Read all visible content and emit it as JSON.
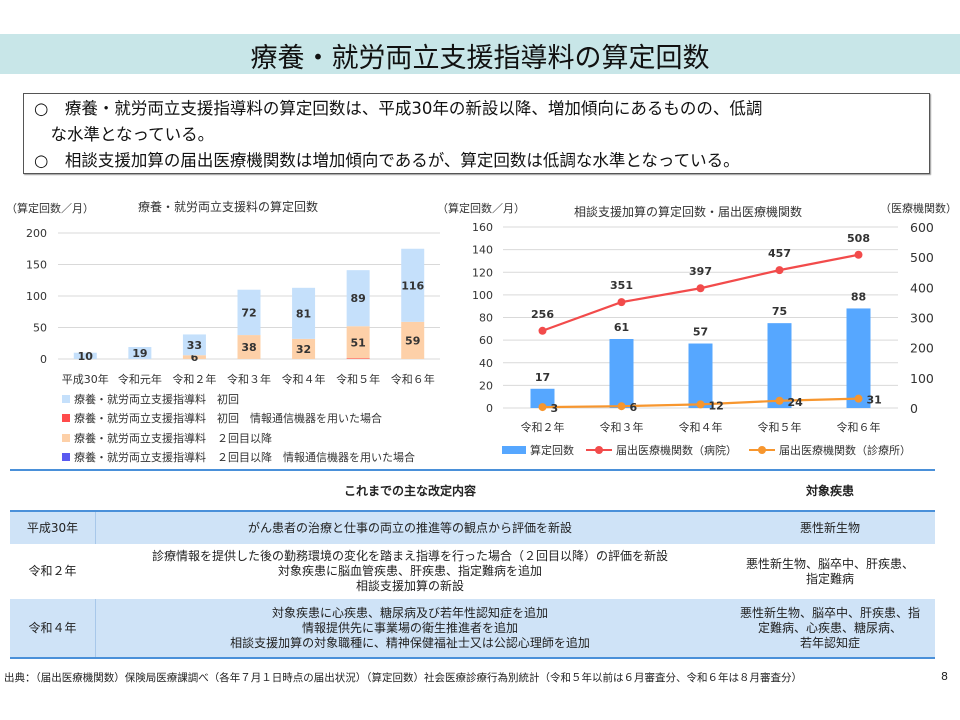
{
  "page": {
    "title": "療養・就労両立支援指導料の算定回数",
    "summary": [
      "○　療養・就労両立支援指導料の算定回数は、平成30年の新設以降、増加傾向にあるものの、低調",
      "　な水準となっている。",
      "○　相談支援加算の届出医療機関数は増加傾向であるが、算定回数は低調な水準となっている。"
    ],
    "source": "出典：（届出医療機関数）保険局医療課調べ（各年７月１日時点の届出状況）（算定回数）社会医療診療行為別統計（令和５年以前は６月審査分、令和６年は８月審査分）",
    "page_number": "8"
  },
  "chart_data": [
    {
      "type": "bar",
      "stacked": true,
      "title": "療養・就労両立支援料の算定回数",
      "ylabel": "（算定回数／月）",
      "xlabel": "",
      "ylim": [
        0,
        200
      ],
      "yticks": [
        0,
        50,
        100,
        150,
        200
      ],
      "grid": true,
      "legend_position": "bottom",
      "categories": [
        "平成30年",
        "令和元年",
        "令和２年",
        "令和３年",
        "令和４年",
        "令和５年",
        "令和６年"
      ],
      "series": [
        {
          "name": "療養・就労両立支援指導料　初回　情報通信機器を用いた場合",
          "color": "#ff4b4b",
          "values": [
            null,
            null,
            null,
            null,
            0,
            1,
            0
          ]
        },
        {
          "name": "療養・就労両立支援指導料　２回目以降",
          "color": "#fdd0a8",
          "values": [
            null,
            null,
            6,
            38,
            32,
            51,
            59
          ]
        },
        {
          "name": "療養・就労両立支援指導料　２回目以降　情報通信機器を用いた場合",
          "color": "#5a5af0",
          "values": [
            null,
            null,
            null,
            null,
            0,
            0,
            0
          ]
        },
        {
          "name": "療養・就労両立支援指導料　初回",
          "color": "#c5e0fb",
          "values": [
            10,
            19,
            33,
            72,
            81,
            89,
            116
          ]
        }
      ],
      "legend_order": [
        {
          "name": "療養・就労両立支援指導料　初回",
          "color": "#c5e0fb"
        },
        {
          "name": "療養・就労両立支援指導料　初回　情報通信機器を用いた場合",
          "color": "#ff4b4b"
        },
        {
          "name": "療養・就労両立支援指導料　２回目以降",
          "color": "#fdd0a8"
        },
        {
          "name": "療養・就労両立支援指導料　２回目以降　情報通信機器を用いた場合",
          "color": "#5a5af0"
        }
      ]
    },
    {
      "type": "bar+line",
      "title": "相談支援加算の算定回数・届出医療機関数",
      "ylabel": "（算定回数／月）",
      "y2label": "（医療機関数）",
      "ylim": [
        0,
        160
      ],
      "yticks": [
        0,
        20,
        40,
        60,
        80,
        100,
        120,
        140,
        160
      ],
      "y2lim": [
        0,
        600
      ],
      "y2ticks": [
        0,
        100,
        200,
        300,
        400,
        500,
        600
      ],
      "grid": true,
      "legend_position": "bottom",
      "categories": [
        "令和２年",
        "令和３年",
        "令和４年",
        "令和５年",
        "令和６年"
      ],
      "series": [
        {
          "name": "算定回数",
          "type": "bar",
          "axis": "left",
          "color": "#56a7ff",
          "values": [
            17,
            61,
            57,
            75,
            88
          ]
        },
        {
          "name": "届出医療機関数（病院）",
          "type": "line",
          "axis": "right",
          "color": "#f24b4b",
          "values": [
            256,
            351,
            397,
            457,
            508
          ]
        },
        {
          "name": "届出医療機関数（診療所）",
          "type": "line",
          "axis": "right",
          "color": "#f7962e",
          "values": [
            3,
            6,
            12,
            24,
            31
          ]
        }
      ]
    }
  ],
  "table": {
    "headers": [
      "",
      "これまでの主な改定内容",
      "対象疾患"
    ],
    "rows": [
      {
        "year": "平成30年",
        "content": [
          "がん患者の治療と仕事の両立の推進等の観点から評価を新設"
        ],
        "diseases": [
          "悪性新生物"
        ]
      },
      {
        "year": "令和２年",
        "content": [
          "診療情報を提供した後の勤務環境の変化を踏まえ指導を行った場合（２回目以降）の評価を新設",
          "対象疾患に脳血管疾患、肝疾患、指定難病を追加",
          "相談支援加算の新設"
        ],
        "diseases": [
          "悪性新生物、脳卒中、肝疾患、",
          "指定難病"
        ]
      },
      {
        "year": "令和４年",
        "content": [
          "対象疾患に心疾患、糖尿病及び若年性認知症を追加",
          "情報提供先に事業場の衛生推進者を追加",
          "相談支援加算の対象職種に、精神保健福祉士又は公認心理師を追加"
        ],
        "diseases": [
          "悪性新生物、脳卒中、肝疾患、指",
          "定難病、心疾患、糖尿病、",
          "若年認知症"
        ]
      }
    ]
  }
}
